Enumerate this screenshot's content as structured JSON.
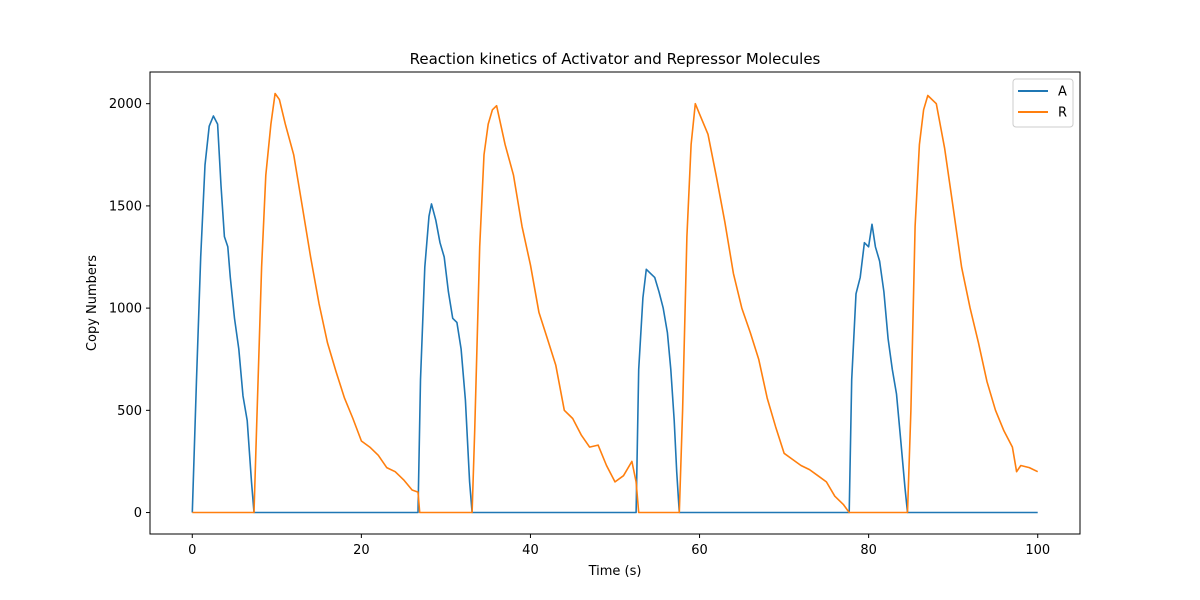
{
  "chart_data": {
    "type": "line",
    "title": "Reaction kinetics of Activator and Repressor Molecules",
    "xlabel": "Time (s)",
    "ylabel": "Copy Numbers",
    "xlim": [
      -5,
      105
    ],
    "ylim": [
      -105,
      2155
    ],
    "xticks": [
      0,
      20,
      40,
      60,
      80,
      100
    ],
    "yticks": [
      0,
      500,
      1000,
      1500,
      2000
    ],
    "grid": false,
    "legend_position": "top-right",
    "series": [
      {
        "name": "A",
        "color": "#1f77b4",
        "points": [
          [
            0,
            0
          ],
          [
            0.5,
            650
          ],
          [
            1,
            1250
          ],
          [
            1.5,
            1700
          ],
          [
            2,
            1890
          ],
          [
            2.5,
            1940
          ],
          [
            3,
            1900
          ],
          [
            3.4,
            1600
          ],
          [
            3.8,
            1350
          ],
          [
            4.2,
            1300
          ],
          [
            4.5,
            1150
          ],
          [
            5,
            950
          ],
          [
            5.5,
            800
          ],
          [
            6,
            570
          ],
          [
            6.5,
            450
          ],
          [
            7,
            150
          ],
          [
            7.3,
            0
          ],
          [
            26.7,
            0
          ],
          [
            27,
            650
          ],
          [
            27.5,
            1200
          ],
          [
            28,
            1450
          ],
          [
            28.3,
            1510
          ],
          [
            28.8,
            1430
          ],
          [
            29.3,
            1320
          ],
          [
            29.8,
            1250
          ],
          [
            30.3,
            1080
          ],
          [
            30.8,
            950
          ],
          [
            31.3,
            930
          ],
          [
            31.8,
            800
          ],
          [
            32.3,
            550
          ],
          [
            32.8,
            150
          ],
          [
            33.1,
            0
          ],
          [
            52.5,
            0
          ],
          [
            52.8,
            700
          ],
          [
            53.3,
            1050
          ],
          [
            53.7,
            1190
          ],
          [
            54.2,
            1170
          ],
          [
            54.7,
            1150
          ],
          [
            55.2,
            1080
          ],
          [
            55.7,
            1000
          ],
          [
            56.2,
            880
          ],
          [
            56.6,
            700
          ],
          [
            57,
            450
          ],
          [
            57.3,
            200
          ],
          [
            57.6,
            0
          ],
          [
            77.7,
            0
          ],
          [
            78,
            650
          ],
          [
            78.5,
            1070
          ],
          [
            79,
            1150
          ],
          [
            79.5,
            1320
          ],
          [
            80,
            1300
          ],
          [
            80.4,
            1410
          ],
          [
            80.8,
            1300
          ],
          [
            81.3,
            1230
          ],
          [
            81.8,
            1080
          ],
          [
            82.3,
            850
          ],
          [
            82.8,
            700
          ],
          [
            83.3,
            580
          ],
          [
            83.8,
            350
          ],
          [
            84.3,
            120
          ],
          [
            84.6,
            0
          ],
          [
            100,
            0
          ]
        ]
      },
      {
        "name": "R",
        "color": "#ff7f0e",
        "points": [
          [
            0,
            0
          ],
          [
            7.3,
            0
          ],
          [
            7.6,
            400
          ],
          [
            8.2,
            1200
          ],
          [
            8.7,
            1650
          ],
          [
            9.3,
            1900
          ],
          [
            9.8,
            2050
          ],
          [
            10.3,
            2020
          ],
          [
            11,
            1900
          ],
          [
            12,
            1750
          ],
          [
            13,
            1500
          ],
          [
            14,
            1250
          ],
          [
            15,
            1020
          ],
          [
            16,
            830
          ],
          [
            17,
            690
          ],
          [
            18,
            560
          ],
          [
            19,
            460
          ],
          [
            20,
            350
          ],
          [
            21,
            320
          ],
          [
            22,
            280
          ],
          [
            23,
            220
          ],
          [
            24,
            200
          ],
          [
            25,
            160
          ],
          [
            26,
            110
          ],
          [
            26.7,
            100
          ],
          [
            26.9,
            0
          ],
          [
            33.1,
            0
          ],
          [
            33.4,
            400
          ],
          [
            34,
            1300
          ],
          [
            34.5,
            1750
          ],
          [
            35,
            1900
          ],
          [
            35.5,
            1970
          ],
          [
            36,
            1990
          ],
          [
            37,
            1800
          ],
          [
            38,
            1650
          ],
          [
            39,
            1400
          ],
          [
            40,
            1210
          ],
          [
            41,
            980
          ],
          [
            42,
            850
          ],
          [
            43,
            720
          ],
          [
            44,
            500
          ],
          [
            45,
            460
          ],
          [
            46,
            380
          ],
          [
            47,
            320
          ],
          [
            48,
            330
          ],
          [
            49,
            230
          ],
          [
            50,
            150
          ],
          [
            51,
            180
          ],
          [
            52,
            250
          ],
          [
            52.5,
            150
          ],
          [
            52.8,
            0
          ],
          [
            57.6,
            0
          ],
          [
            58,
            500
          ],
          [
            58.5,
            1350
          ],
          [
            59,
            1800
          ],
          [
            59.5,
            2000
          ],
          [
            60,
            1950
          ],
          [
            61,
            1850
          ],
          [
            62,
            1640
          ],
          [
            63,
            1420
          ],
          [
            64,
            1170
          ],
          [
            65,
            1000
          ],
          [
            66,
            880
          ],
          [
            67,
            750
          ],
          [
            68,
            560
          ],
          [
            69,
            420
          ],
          [
            70,
            290
          ],
          [
            71,
            260
          ],
          [
            72,
            230
          ],
          [
            73,
            210
          ],
          [
            74,
            180
          ],
          [
            75,
            150
          ],
          [
            76,
            80
          ],
          [
            77,
            40
          ],
          [
            77.7,
            0
          ],
          [
            84.6,
            0
          ],
          [
            85,
            500
          ],
          [
            85.5,
            1400
          ],
          [
            86,
            1800
          ],
          [
            86.5,
            1970
          ],
          [
            87,
            2040
          ],
          [
            88,
            2000
          ],
          [
            89,
            1780
          ],
          [
            90,
            1490
          ],
          [
            91,
            1200
          ],
          [
            92,
            1000
          ],
          [
            93,
            830
          ],
          [
            94,
            640
          ],
          [
            95,
            500
          ],
          [
            96,
            400
          ],
          [
            97,
            320
          ],
          [
            97.5,
            200
          ],
          [
            98,
            230
          ],
          [
            99,
            220
          ],
          [
            100,
            200
          ]
        ]
      }
    ]
  }
}
